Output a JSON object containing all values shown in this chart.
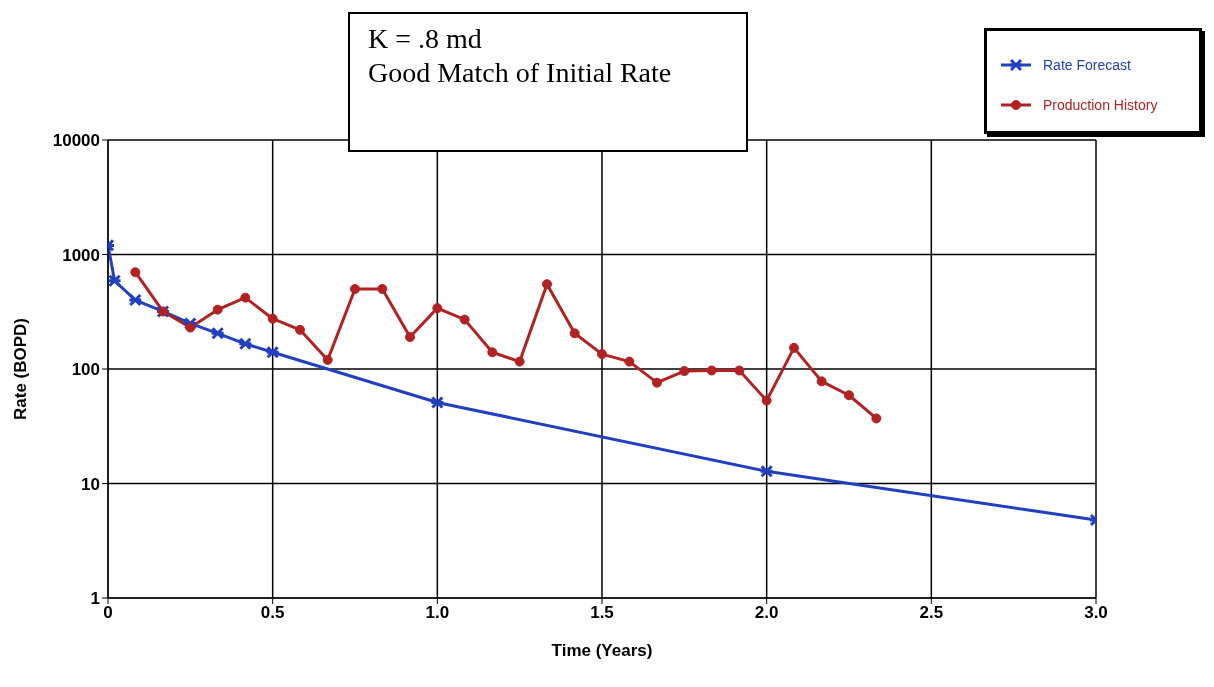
{
  "chart_data": {
    "type": "line",
    "xlabel": "Time (Years)",
    "ylabel": "Rate (BOPD)",
    "annotations": [
      "K = .8 md",
      "Good Match of Initial Rate"
    ],
    "series": [
      {
        "name": "Rate Forecast",
        "color": "#2040c0",
        "marker": "cross",
        "x": [
          0,
          0.02,
          0.083,
          0.167,
          0.25,
          0.333,
          0.417,
          0.5,
          1.0,
          2.0,
          3.0
        ],
        "values": [
          1200,
          590,
          400,
          318,
          250,
          205,
          166,
          140,
          51,
          12.8,
          4.8
        ]
      },
      {
        "name": "Production History",
        "color": "#b22222",
        "marker": "circle",
        "x": [
          0.083,
          0.167,
          0.25,
          0.333,
          0.417,
          0.5,
          0.583,
          0.667,
          0.75,
          0.833,
          0.917,
          1.0,
          1.083,
          1.167,
          1.25,
          1.333,
          1.417,
          1.5,
          1.583,
          1.667,
          1.75,
          1.833,
          1.917,
          2.0,
          2.083,
          2.167,
          2.25,
          2.333
        ],
        "values": [
          700,
          318,
          230,
          330,
          420,
          275,
          220,
          120,
          500,
          500,
          190,
          340,
          270,
          140,
          116,
          550,
          205,
          135,
          116,
          76,
          96,
          97,
          97,
          53,
          153,
          78,
          59,
          37
        ]
      }
    ],
    "xlim": [
      0,
      3
    ],
    "xticks": [
      0,
      0.5,
      {
        "value": 1,
        "label": "1.0"
      },
      1.5,
      {
        "value": 2,
        "label": "2.0"
      },
      2.5,
      {
        "value": 3,
        "label": "3.0"
      }
    ],
    "ylim": [
      1,
      10000
    ],
    "yticks": [
      1,
      10,
      100,
      1000,
      10000
    ],
    "log": true,
    "grid": true,
    "legend": "top right",
    "line_style": "solid"
  }
}
